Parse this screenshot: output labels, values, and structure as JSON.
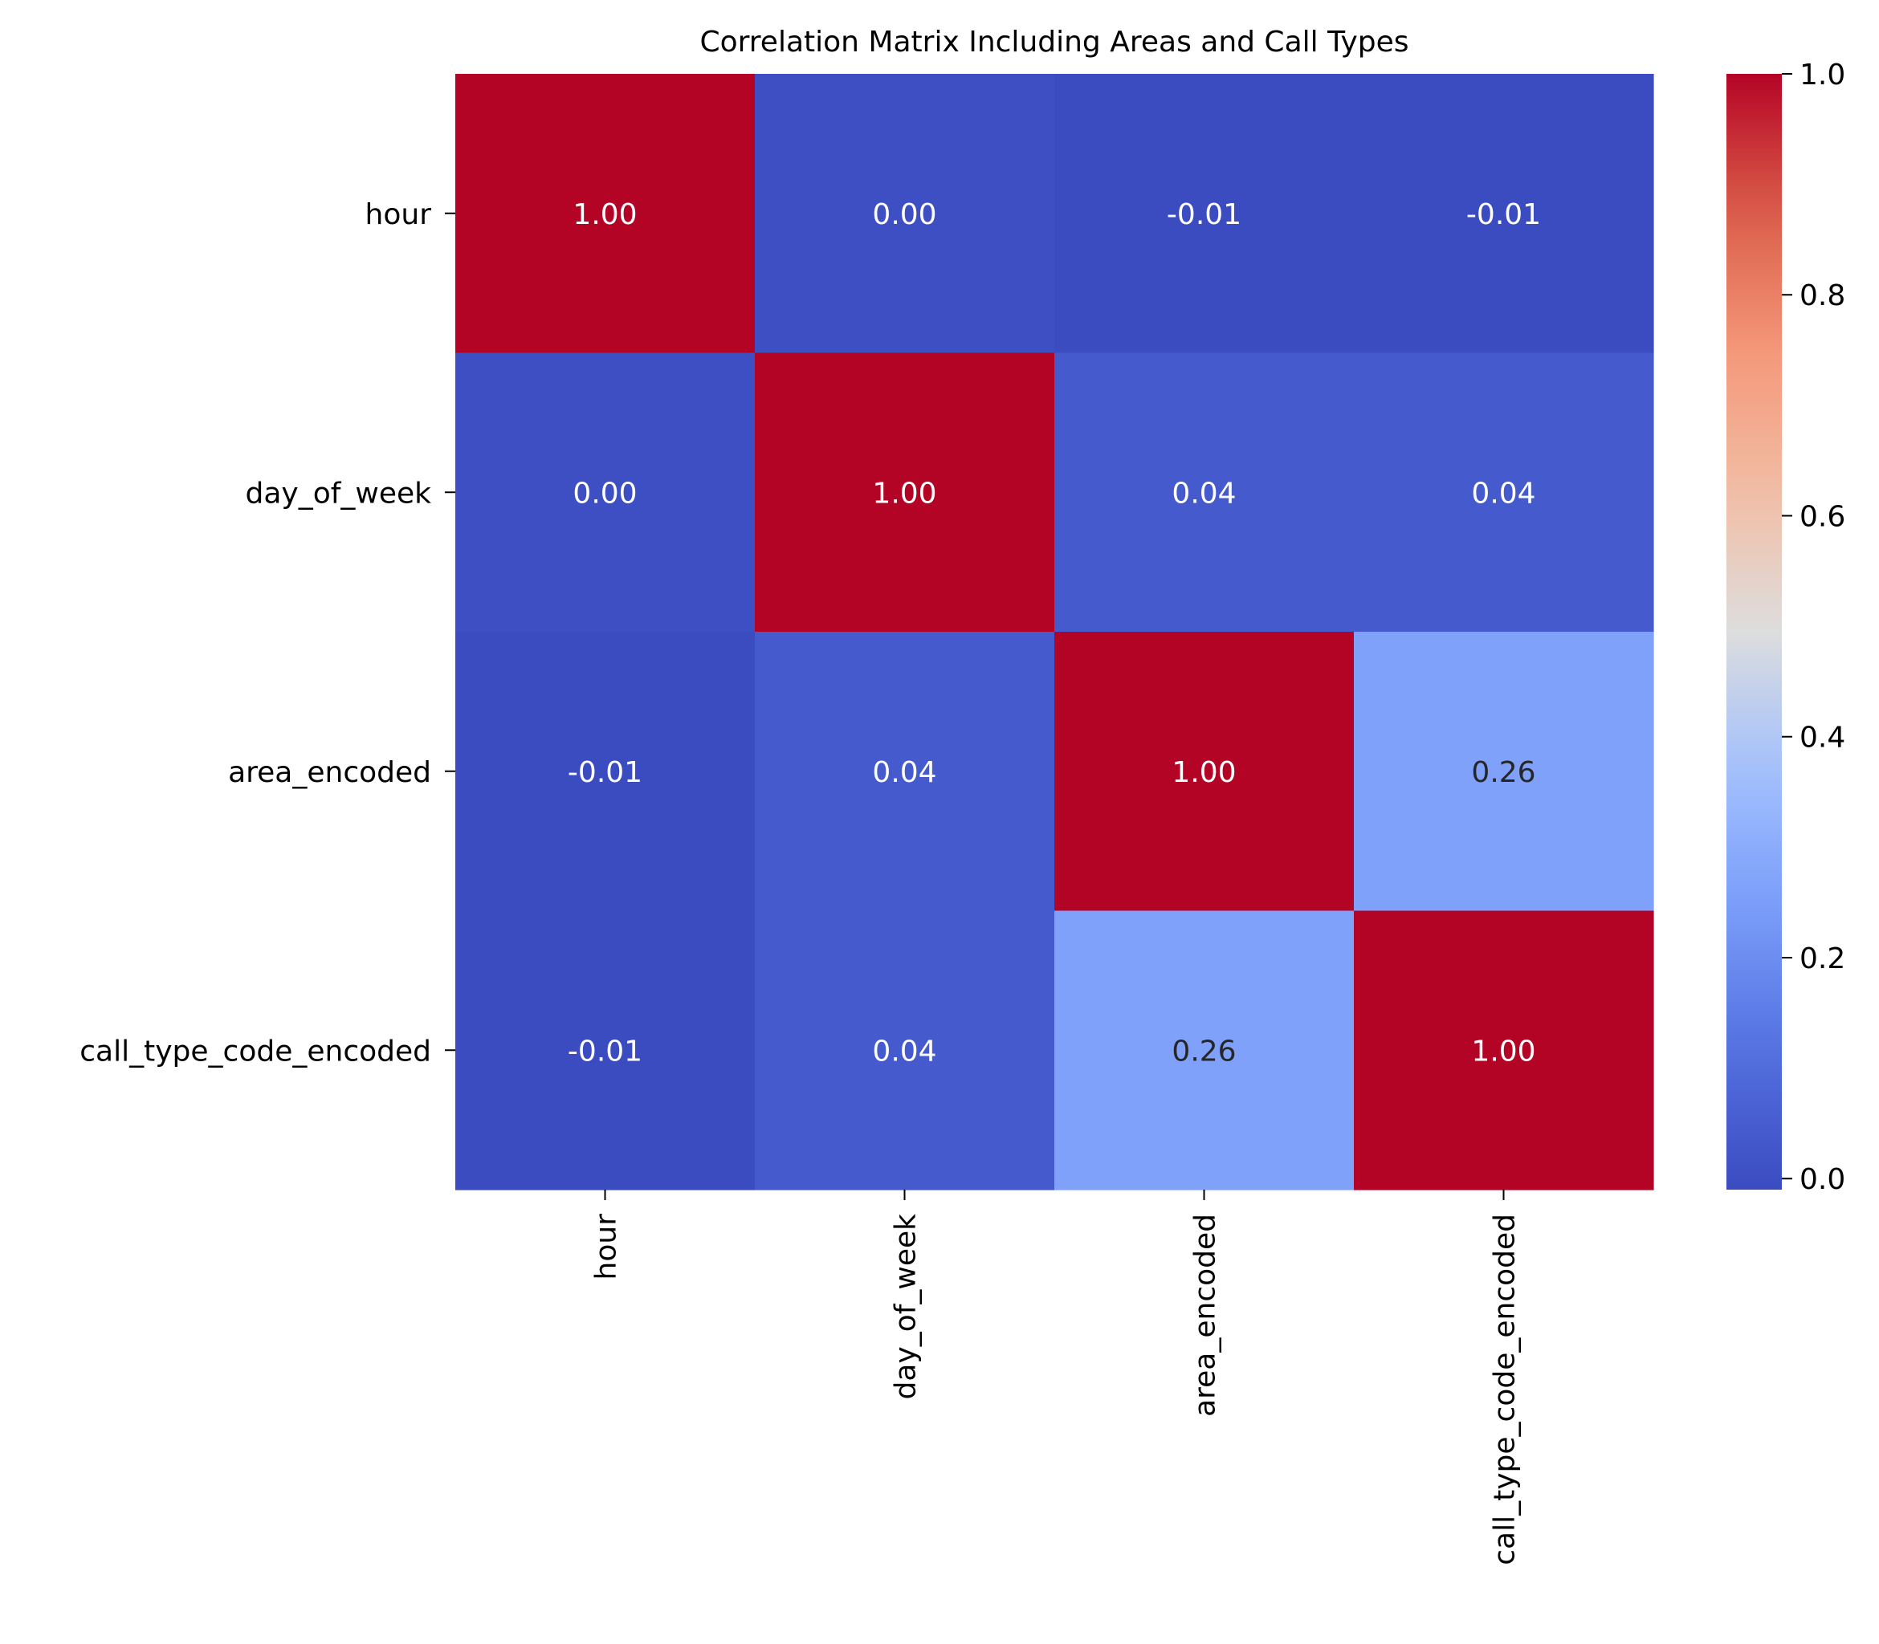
{
  "chart_data": {
    "type": "heatmap",
    "title": "Correlation Matrix Including Areas and Call Types",
    "xlabel": "",
    "ylabel": "",
    "row_labels": [
      "hour",
      "day_of_week",
      "area_encoded",
      "call_type_code_encoded"
    ],
    "col_labels": [
      "hour",
      "day_of_week",
      "area_encoded",
      "call_type_code_encoded"
    ],
    "values": [
      [
        1.0,
        0.0,
        -0.01,
        -0.01
      ],
      [
        0.0,
        1.0,
        0.04,
        0.04
      ],
      [
        -0.01,
        0.04,
        1.0,
        0.26
      ],
      [
        -0.01,
        0.04,
        0.26,
        1.0
      ]
    ],
    "cell_labels": [
      [
        "1.00",
        "0.00",
        "-0.01",
        "-0.01"
      ],
      [
        "0.00",
        "1.00",
        "0.04",
        "0.04"
      ],
      [
        "-0.01",
        "0.04",
        "1.00",
        "0.26"
      ],
      [
        "-0.01",
        "0.04",
        "0.26",
        "1.00"
      ]
    ],
    "colormap": "coolwarm",
    "colorbar": {
      "range": [
        -0.01,
        1.0
      ],
      "ticks": [
        0.0,
        0.2,
        0.4,
        0.6,
        0.8,
        1.0
      ],
      "tick_labels": [
        "0.0",
        "0.2",
        "0.4",
        "0.6",
        "0.8",
        "1.0"
      ],
      "placement": "right"
    },
    "grid": false,
    "legend": "none"
  }
}
